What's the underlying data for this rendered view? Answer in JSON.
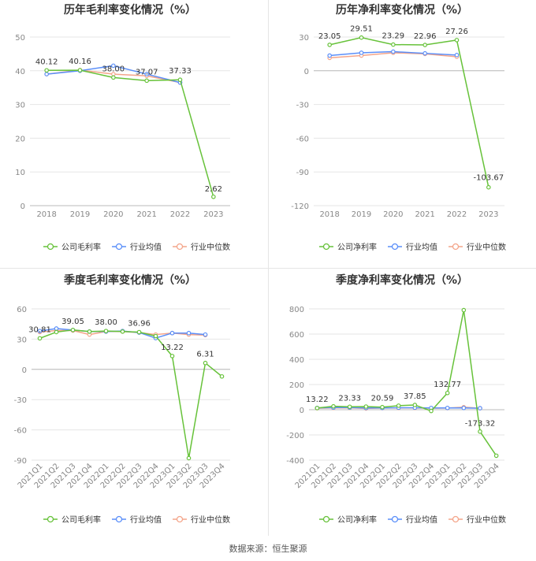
{
  "colors": {
    "company": "#67c23a",
    "industry_avg": "#5b8ff9",
    "industry_median": "#f4a58a",
    "grid": "#e6e6e6",
    "axis_text": "#888888",
    "title_text": "#333333"
  },
  "source_text": "数据来源：恒生聚源",
  "chart_data": [
    {
      "id": "annual_gross",
      "type": "line",
      "title": "历年毛利率变化情况（%）",
      "categories": [
        "2018",
        "2019",
        "2020",
        "2021",
        "2022",
        "2023"
      ],
      "ylim": [
        0,
        50
      ],
      "yticks": [
        0,
        10,
        20,
        30,
        40,
        50
      ],
      "grid": true,
      "legend_position": "bottom",
      "series": [
        {
          "name": "公司毛利率",
          "color_key": "company",
          "values": [
            40.12,
            40.16,
            38.0,
            37.07,
            37.33,
            2.62
          ],
          "labels": [
            "40.12",
            "40.16",
            "38.00",
            "37.07",
            "37.33",
            "2.62"
          ]
        },
        {
          "name": "行业均值",
          "color_key": "industry_avg",
          "values": [
            39.0,
            40.0,
            41.5,
            39.0,
            36.5,
            null
          ],
          "labels": []
        },
        {
          "name": "行业中位数",
          "color_key": "industry_median",
          "values": [
            39.0,
            40.2,
            39.0,
            38.5,
            36.5,
            null
          ],
          "labels": []
        }
      ]
    },
    {
      "id": "annual_net",
      "type": "line",
      "title": "历年净利率变化情况（%）",
      "categories": [
        "2018",
        "2019",
        "2020",
        "2021",
        "2022",
        "2023"
      ],
      "ylim": [
        -120,
        30
      ],
      "yticks": [
        -120,
        -90,
        -60,
        -30,
        0,
        30
      ],
      "grid": true,
      "legend_position": "bottom",
      "series": [
        {
          "name": "公司净利率",
          "color_key": "company",
          "values": [
            23.05,
            29.51,
            23.29,
            22.96,
            27.26,
            -103.67
          ],
          "labels": [
            "23.05",
            "29.51",
            "23.29",
            "22.96",
            "27.26",
            "-103.67"
          ]
        },
        {
          "name": "行业均值",
          "color_key": "industry_avg",
          "values": [
            13.5,
            16.0,
            17.0,
            15.5,
            14.0,
            null
          ],
          "labels": []
        },
        {
          "name": "行业中位数",
          "color_key": "industry_median",
          "values": [
            11.5,
            13.5,
            16.0,
            15.0,
            12.5,
            null
          ],
          "labels": []
        }
      ]
    },
    {
      "id": "quarterly_gross",
      "type": "line",
      "title": "季度毛利率变化情况（%）",
      "categories": [
        "2021Q1",
        "2021Q2",
        "2021Q3",
        "2021Q4",
        "2022Q1",
        "2022Q2",
        "2022Q3",
        "2022Q4",
        "2023Q1",
        "2023Q2",
        "2023Q3",
        "2023Q4"
      ],
      "ylim": [
        -90,
        60
      ],
      "yticks": [
        -90,
        -60,
        -30,
        0,
        30,
        60
      ],
      "grid": true,
      "legend_position": "bottom",
      "series": [
        {
          "name": "公司毛利率",
          "color_key": "company",
          "values": [
            30.81,
            37.0,
            39.05,
            37.5,
            38.0,
            37.5,
            36.96,
            33.0,
            13.22,
            -88.0,
            6.31,
            -7.0
          ],
          "labels": [
            "30.81",
            "",
            "39.05",
            "",
            "38.00",
            "",
            "36.96",
            "",
            "13.22",
            "",
            "6.31",
            ""
          ]
        },
        {
          "name": "行业均值",
          "color_key": "industry_avg",
          "values": [
            38.0,
            40.5,
            39.0,
            37.5,
            37.5,
            38.0,
            36.5,
            31.0,
            36.0,
            36.0,
            34.5,
            null
          ],
          "labels": []
        },
        {
          "name": "行业中位数",
          "color_key": "industry_median",
          "values": [
            37.0,
            38.5,
            38.5,
            34.5,
            37.5,
            37.5,
            36.5,
            34.5,
            36.0,
            34.5,
            34.0,
            null
          ],
          "labels": []
        }
      ]
    },
    {
      "id": "quarterly_net",
      "type": "line",
      "title": "季度净利率变化情况（%）",
      "categories": [
        "2021Q1",
        "2021Q2",
        "2021Q3",
        "2021Q4",
        "2022Q1",
        "2022Q2",
        "2022Q3",
        "2022Q4",
        "2023Q1",
        "2023Q2",
        "2023Q3",
        "2023Q4"
      ],
      "ylim": [
        -400,
        800
      ],
      "yticks": [
        -400,
        -200,
        0,
        200,
        400,
        600,
        800
      ],
      "grid": true,
      "legend_position": "bottom",
      "series": [
        {
          "name": "公司净利率",
          "color_key": "company",
          "values": [
            13.22,
            27.0,
            23.33,
            25.0,
            20.59,
            32.0,
            37.85,
            -10.0,
            132.77,
            790.0,
            -173.32,
            -365.0
          ],
          "labels": [
            "13.22",
            "",
            "23.33",
            "",
            "20.59",
            "",
            "37.85",
            "",
            "132.77",
            "",
            "-173.32",
            ""
          ]
        },
        {
          "name": "行业均值",
          "color_key": "industry_avg",
          "values": [
            14.0,
            17.0,
            17.0,
            14.0,
            14.0,
            16.0,
            16.0,
            14.0,
            14.0,
            14.0,
            12.0,
            null
          ],
          "labels": []
        },
        {
          "name": "行业中位数",
          "color_key": "industry_median",
          "values": [
            12.0,
            14.0,
            15.0,
            10.0,
            13.0,
            14.0,
            14.0,
            12.0,
            13.0,
            20.0,
            12.0,
            null
          ],
          "labels": []
        }
      ]
    }
  ]
}
